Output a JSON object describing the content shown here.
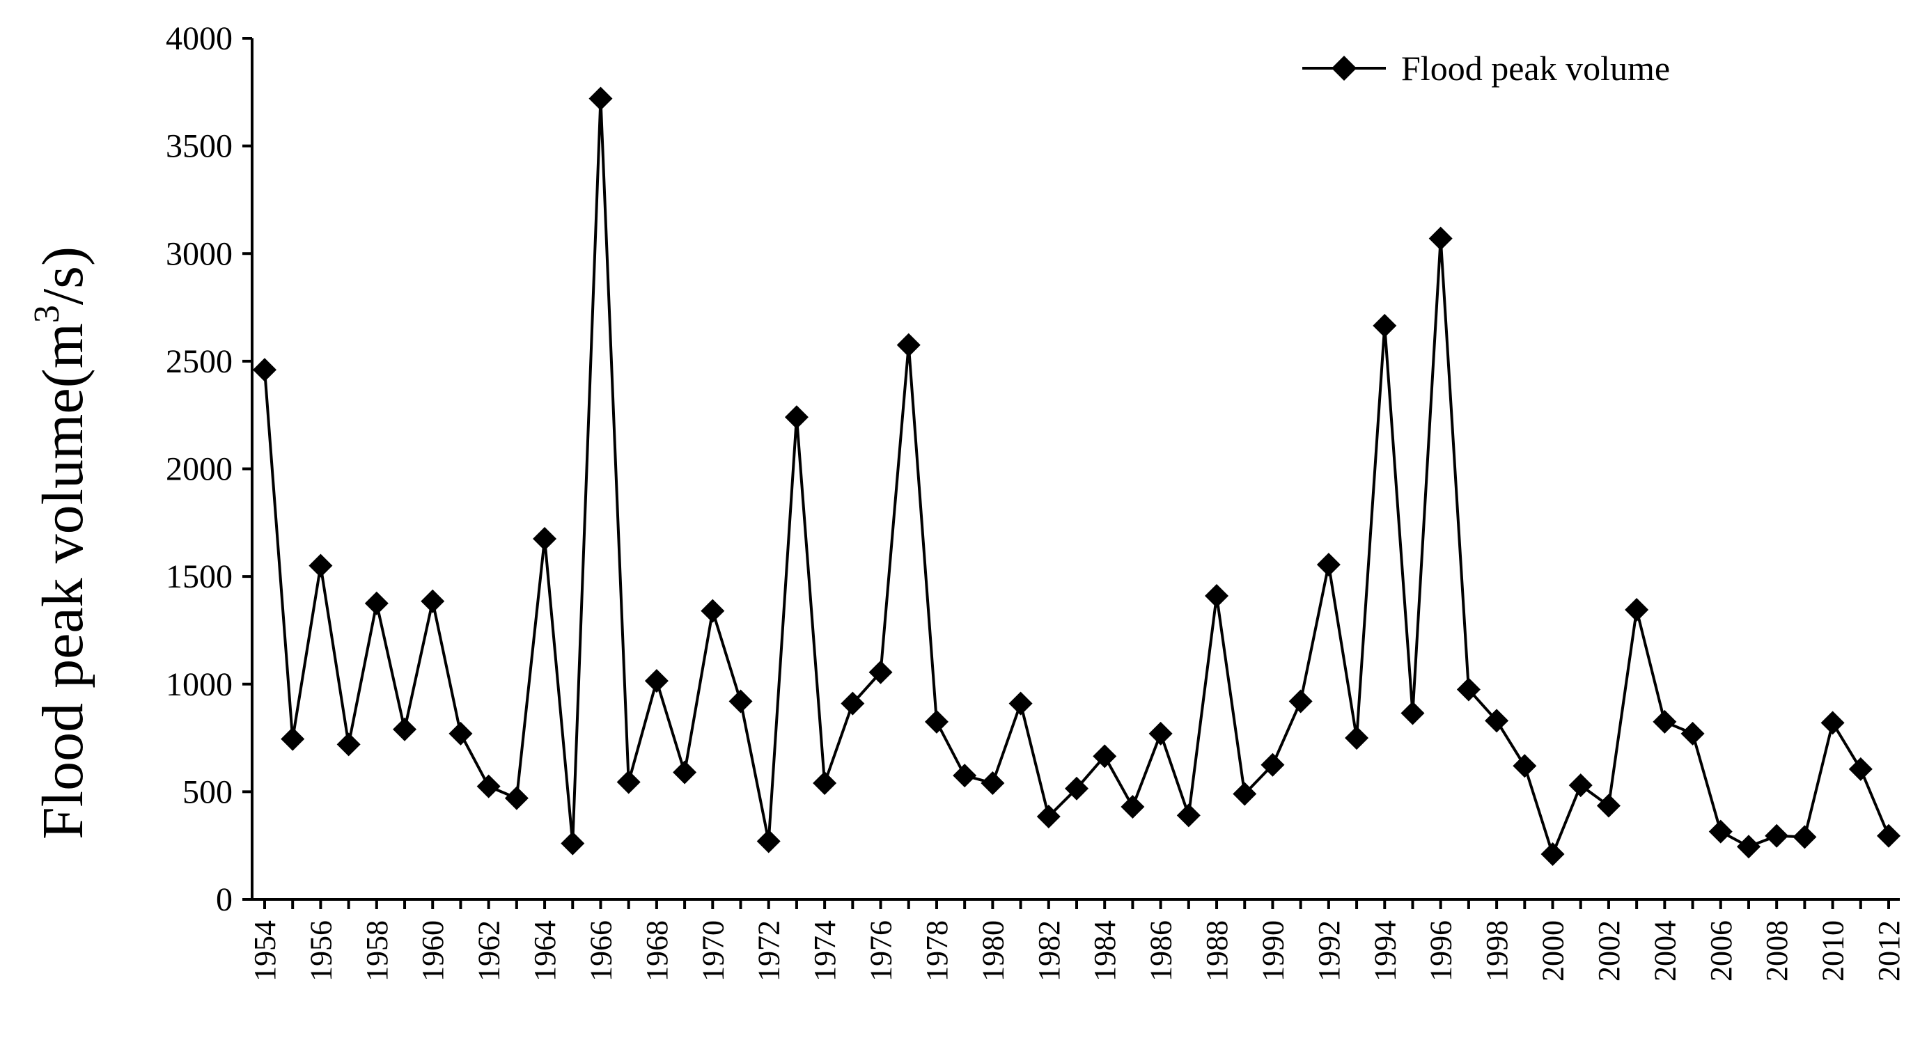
{
  "chart_data": {
    "type": "line",
    "title": "",
    "xlabel": "",
    "ylabel": "Flood peak volume(m",
    "ylabel_sup": "3",
    "ylabel_suffix": "/s)",
    "ylim": [
      0,
      4000
    ],
    "yticks": [
      0,
      500,
      1000,
      1500,
      2000,
      2500,
      3000,
      3500,
      4000
    ],
    "x": [
      1954,
      1955,
      1956,
      1957,
      1958,
      1959,
      1960,
      1961,
      1962,
      1963,
      1964,
      1965,
      1966,
      1967,
      1968,
      1969,
      1970,
      1971,
      1972,
      1973,
      1974,
      1975,
      1976,
      1977,
      1978,
      1979,
      1980,
      1981,
      1982,
      1983,
      1984,
      1985,
      1986,
      1987,
      1988,
      1989,
      1990,
      1991,
      1992,
      1993,
      1994,
      1995,
      1996,
      1997,
      1998,
      1999,
      2000,
      2001,
      2002,
      2003,
      2004,
      2005,
      2006,
      2007,
      2008,
      2009,
      2010,
      2011,
      2012
    ],
    "xtick_labels": [
      "1954",
      "1956",
      "1958",
      "1960",
      "1962",
      "1964",
      "1966",
      "1968",
      "1970",
      "1972",
      "1974",
      "1976",
      "1978",
      "1980",
      "1982",
      "1984",
      "1986",
      "1988",
      "1990",
      "1992",
      "1994",
      "1996",
      "1998",
      "2000",
      "2002",
      "2004",
      "2006",
      "2008",
      "2010",
      "2012"
    ],
    "legend_position": "top-right",
    "series": [
      {
        "name": "Flood peak volume",
        "marker": "diamond",
        "color": "#000000",
        "values": [
          2460,
          745,
          1550,
          720,
          1375,
          790,
          1385,
          770,
          525,
          470,
          1675,
          260,
          3720,
          545,
          1015,
          590,
          1340,
          920,
          270,
          2240,
          540,
          910,
          1055,
          2575,
          825,
          575,
          540,
          910,
          385,
          515,
          665,
          430,
          770,
          390,
          1410,
          490,
          625,
          920,
          1555,
          750,
          2665,
          865,
          3070,
          975,
          830,
          620,
          210,
          530,
          435,
          1345,
          825,
          770,
          315,
          245,
          295,
          290,
          820,
          605,
          295
        ]
      }
    ]
  }
}
